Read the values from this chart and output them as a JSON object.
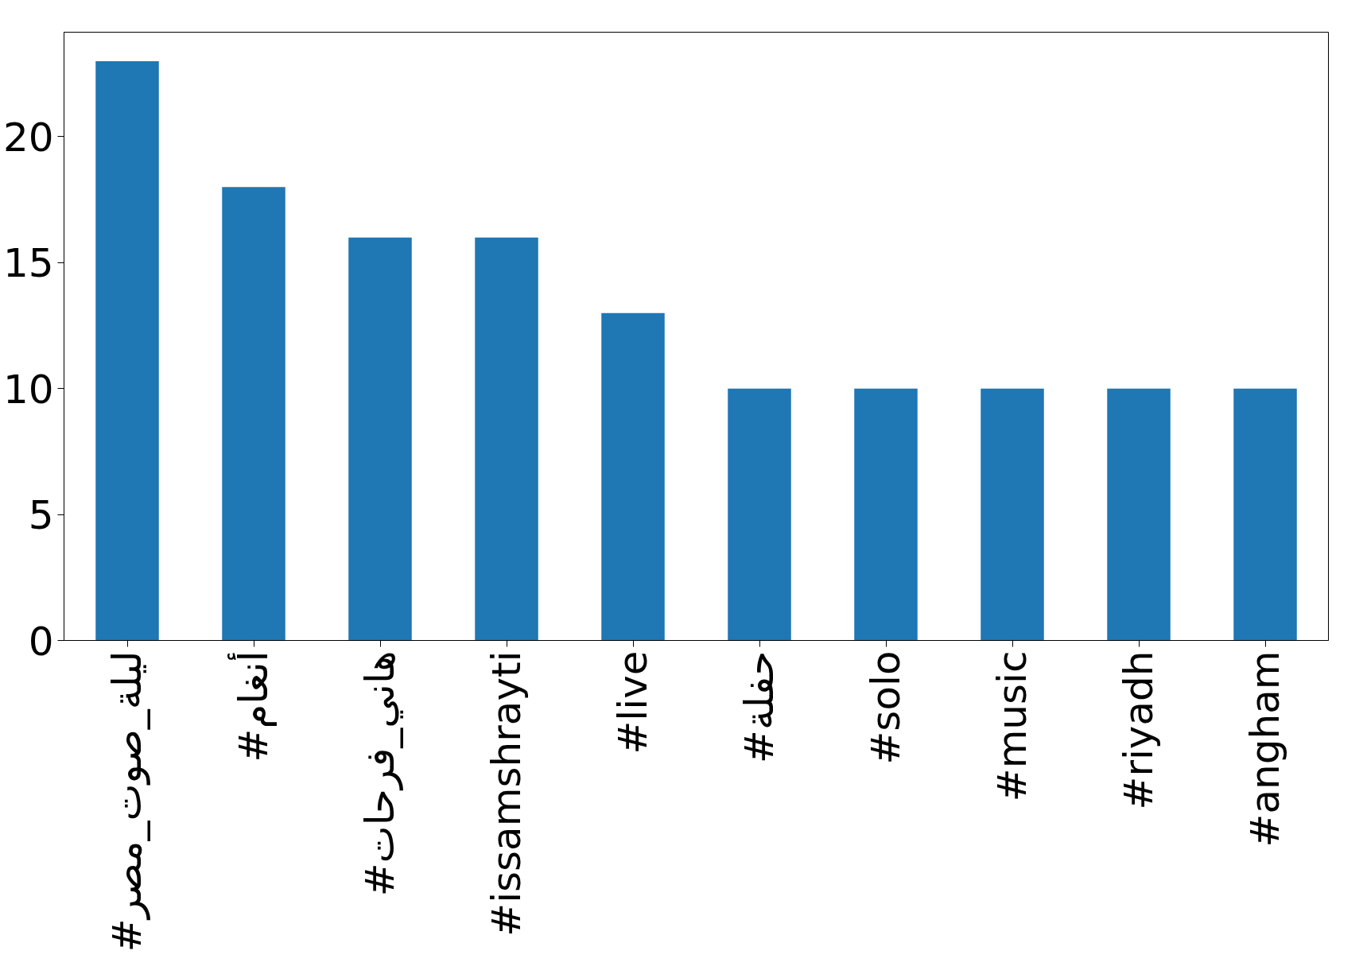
{
  "chart_data": {
    "type": "bar",
    "categories": [
      "#ليلة_صوت_مصر",
      "#أنغام",
      "#هاني_فرحات",
      "#issamshrayti",
      "#live",
      "#حفلة",
      "#solo",
      "#music",
      "#riyadh",
      "#angham"
    ],
    "values": [
      23,
      18,
      16,
      16,
      13,
      10,
      10,
      10,
      10,
      10
    ],
    "color": "#1f77b4",
    "ylim": [
      0,
      24.15
    ],
    "yticks": [
      0,
      5,
      10,
      15,
      20
    ],
    "grid": false
  }
}
